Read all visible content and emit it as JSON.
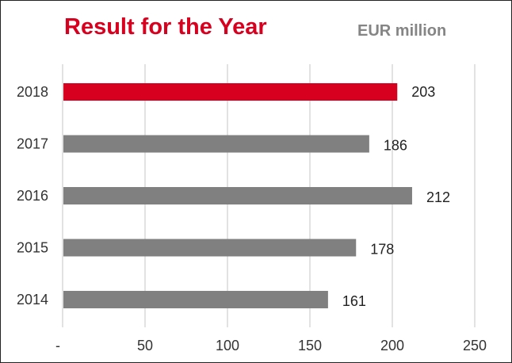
{
  "chart_data": {
    "type": "bar",
    "orientation": "horizontal",
    "title": "Result for the Year",
    "unit": "EUR million",
    "categories": [
      "2018",
      "2017",
      "2016",
      "2015",
      "2014"
    ],
    "values": [
      203,
      186,
      212,
      178,
      161
    ],
    "value_labels": [
      "203",
      "186",
      "212",
      "178",
      "161"
    ],
    "x_ticks": [
      0,
      50,
      100,
      150,
      200,
      250
    ],
    "x_tick_labels": [
      "-",
      "50",
      "100",
      "150",
      "200",
      "250"
    ],
    "xlim": [
      0,
      250
    ],
    "grid": "vertical",
    "colors": {
      "highlight": "#d7001f",
      "bar": "#808080",
      "grid": "#d9d9d9",
      "title": "#d7001f",
      "unit": "#858585"
    },
    "highlight_category": "2018"
  }
}
